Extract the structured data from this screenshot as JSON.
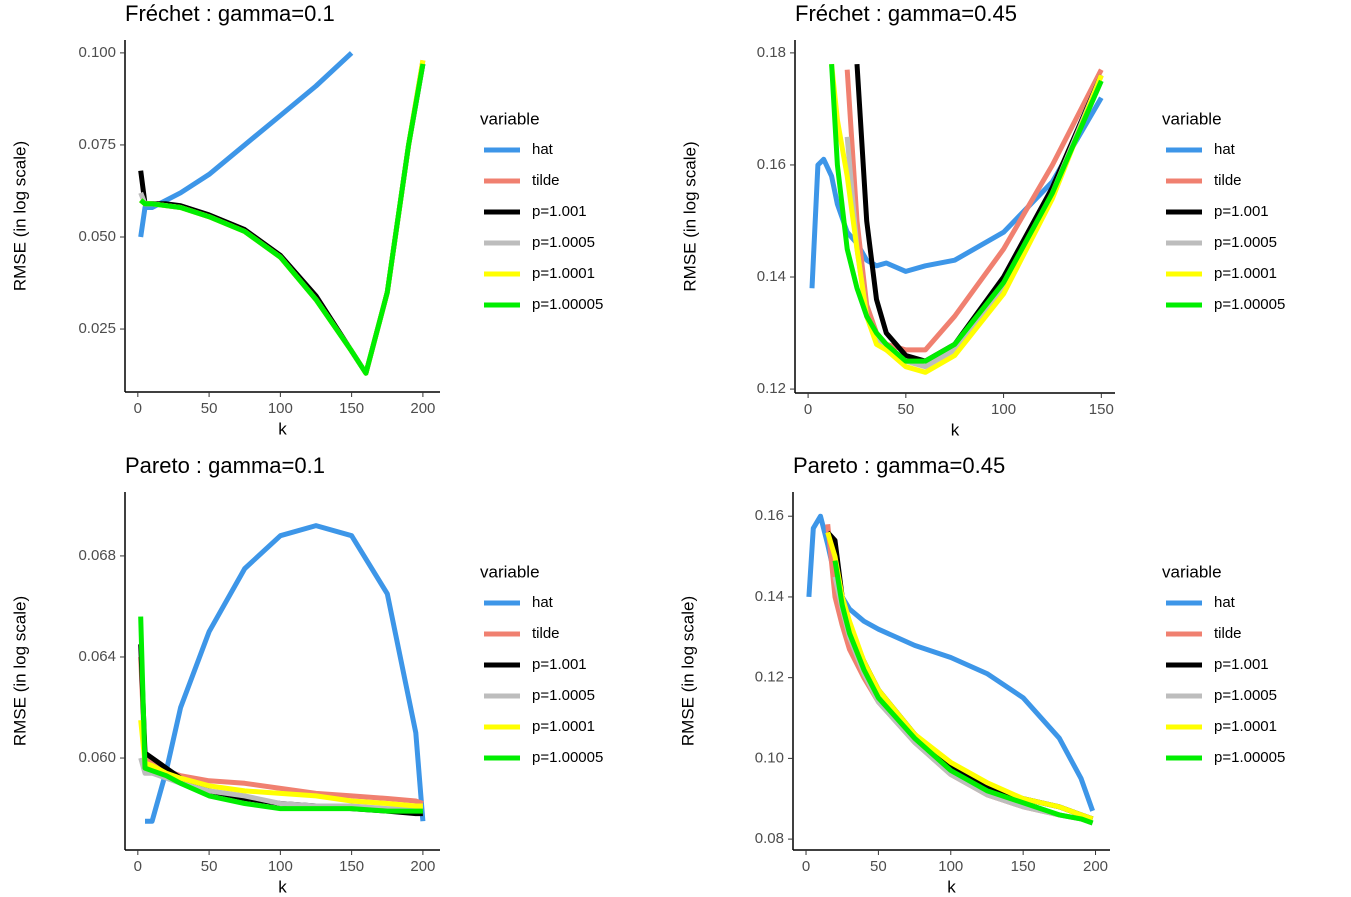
{
  "chart_data": [
    {
      "type": "line",
      "title": "Fréchet : gamma=0.1",
      "xlabel": "k",
      "ylabel": "RMSE (in log scale)",
      "legend_title": "variable",
      "x": [
        2,
        5,
        10,
        20,
        30,
        50,
        75,
        100,
        125,
        150,
        160,
        175,
        190,
        200
      ],
      "series": [
        {
          "name": "hat",
          "color": "#3d96e8",
          "values": [
            0.05,
            0.058,
            0.058,
            0.06,
            0.062,
            0.067,
            0.075,
            0.083,
            0.091,
            0.1,
            null,
            null,
            null,
            null
          ]
        },
        {
          "name": "tilde",
          "color": "#f08070",
          "values": [
            0.06,
            0.059,
            0.059,
            0.0585,
            0.058,
            0.0555,
            0.0515,
            0.0445,
            0.033,
            0.019,
            0.013,
            0.035,
            0.075,
            0.098
          ]
        },
        {
          "name": "p=1.001",
          "color": "#000000",
          "values": [
            0.068,
            0.059,
            0.059,
            0.059,
            0.0585,
            0.056,
            0.052,
            0.045,
            0.034,
            0.019,
            0.013,
            0.035,
            0.075,
            0.097
          ]
        },
        {
          "name": "p=1.0005",
          "color": "#bdbdbd",
          "values": [
            0.062,
            0.059,
            0.059,
            0.0585,
            0.058,
            0.0555,
            0.0515,
            0.0445,
            0.033,
            0.019,
            0.013,
            0.035,
            0.075,
            0.097
          ]
        },
        {
          "name": "p=1.0001",
          "color": "#ffff00",
          "values": [
            0.06,
            0.059,
            0.059,
            0.0585,
            0.058,
            0.0555,
            0.0515,
            0.0445,
            0.033,
            0.019,
            0.013,
            0.035,
            0.075,
            0.098
          ]
        },
        {
          "name": "p=1.00005",
          "color": "#00ee00",
          "values": [
            0.06,
            0.059,
            0.059,
            0.0585,
            0.058,
            0.0555,
            0.0515,
            0.0445,
            0.033,
            0.019,
            0.013,
            0.035,
            0.075,
            0.097
          ]
        }
      ],
      "xlim": [
        -9,
        212
      ],
      "ylim": [
        0.0079,
        0.1035
      ],
      "xticks": [
        0,
        50,
        100,
        150,
        200
      ],
      "yticks": [
        0.025,
        {
          "value": 0.05,
          "label": "0.050"
        },
        0.075,
        {
          "value": 0.1,
          "label": "0.100"
        }
      ]
    },
    {
      "type": "line",
      "title": "Fréchet : gamma=0.45",
      "xlabel": "k",
      "ylabel": "RMSE (in log scale)",
      "legend_title": "variable",
      "x": [
        2,
        5,
        8,
        12,
        15,
        20,
        25,
        30,
        35,
        40,
        50,
        60,
        75,
        100,
        125,
        150
      ],
      "series": [
        {
          "name": "hat",
          "color": "#3d96e8",
          "values": [
            0.138,
            0.16,
            0.161,
            0.158,
            0.153,
            0.148,
            0.146,
            0.143,
            0.142,
            0.1425,
            0.141,
            0.142,
            0.143,
            0.148,
            0.157,
            0.172
          ]
        },
        {
          "name": "tilde",
          "color": "#f08070",
          "values": [
            null,
            null,
            null,
            null,
            null,
            0.177,
            0.15,
            0.135,
            0.13,
            0.128,
            0.127,
            0.127,
            0.133,
            0.145,
            0.16,
            0.177
          ]
        },
        {
          "name": "p=1.001",
          "color": "#000000",
          "values": [
            null,
            null,
            null,
            null,
            null,
            null,
            0.178,
            0.15,
            0.136,
            0.13,
            0.126,
            0.125,
            0.128,
            0.14,
            0.156,
            0.176
          ]
        },
        {
          "name": "p=1.0005",
          "color": "#bdbdbd",
          "values": [
            null,
            null,
            null,
            null,
            null,
            0.165,
            0.145,
            0.133,
            0.129,
            0.127,
            0.125,
            0.124,
            0.127,
            0.138,
            0.155,
            0.176
          ]
        },
        {
          "name": "p=1.0001",
          "color": "#ffff00",
          "values": [
            null,
            null,
            null,
            0.178,
            0.168,
            0.158,
            0.145,
            0.133,
            0.128,
            0.127,
            0.124,
            0.123,
            0.126,
            0.137,
            0.154,
            0.176
          ]
        },
        {
          "name": "p=1.00005",
          "color": "#00ee00",
          "values": [
            null,
            null,
            null,
            0.178,
            0.16,
            0.145,
            0.138,
            0.133,
            0.13,
            0.128,
            0.125,
            0.125,
            0.128,
            0.139,
            0.155,
            0.175
          ]
        }
      ],
      "xlim": [
        -6.7,
        157
      ],
      "ylim": [
        0.1193,
        0.1823
      ],
      "xticks": [
        0,
        50,
        100,
        150
      ],
      "yticks": [
        0.12,
        0.14,
        0.16,
        0.18
      ]
    },
    {
      "type": "line",
      "title": "Pareto : gamma=0.1",
      "xlabel": "k",
      "ylabel": "RMSE (in log scale)",
      "legend_title": "variable",
      "x": [
        2,
        5,
        10,
        20,
        30,
        50,
        75,
        100,
        125,
        150,
        175,
        195,
        200
      ],
      "series": [
        {
          "name": "hat",
          "color": "#3d96e8",
          "values": [
            null,
            0.0575,
            0.0575,
            0.0595,
            0.062,
            0.065,
            0.0675,
            0.0688,
            0.0692,
            0.0688,
            0.0665,
            0.061,
            0.0575
          ]
        },
        {
          "name": "tilde",
          "color": "#f08070",
          "values": [
            0.064,
            0.06,
            0.0598,
            0.0595,
            0.0593,
            0.0591,
            0.059,
            0.0588,
            0.0586,
            0.0585,
            0.0584,
            0.0583,
            0.0582
          ]
        },
        {
          "name": "p=1.001",
          "color": "#000000",
          "values": [
            0.0645,
            0.0602,
            0.06,
            0.0596,
            0.0592,
            0.0587,
            0.0584,
            0.0582,
            0.0581,
            0.058,
            0.0579,
            0.0578,
            0.0578
          ]
        },
        {
          "name": "p=1.0005",
          "color": "#bdbdbd",
          "values": [
            0.06,
            0.0594,
            0.0594,
            0.0592,
            0.059,
            0.0587,
            0.0585,
            0.0582,
            0.0581,
            0.0581,
            0.058,
            0.058,
            0.058
          ]
        },
        {
          "name": "p=1.0001",
          "color": "#ffff00",
          "values": [
            0.0615,
            0.0598,
            0.0597,
            0.0594,
            0.0592,
            0.0589,
            0.0587,
            0.0586,
            0.0585,
            0.0583,
            0.0582,
            0.0581,
            0.0581
          ]
        },
        {
          "name": "p=1.00005",
          "color": "#00ee00",
          "values": [
            0.0656,
            0.0596,
            0.0595,
            0.0593,
            0.059,
            0.0585,
            0.0582,
            0.058,
            0.058,
            0.058,
            0.0579,
            0.0579,
            0.0579
          ]
        }
      ],
      "xlim": [
        -9,
        212
      ],
      "ylim": [
        0.05636,
        0.07053
      ],
      "xticks": [
        0,
        50,
        100,
        150,
        200
      ],
      "yticks": [
        {
          "value": 0.06,
          "label": "0.060"
        },
        0.064,
        0.068
      ]
    },
    {
      "type": "line",
      "title": "Pareto : gamma=0.45",
      "xlabel": "k",
      "ylabel": "RMSE (in log scale)",
      "legend_title": "variable",
      "x": [
        2,
        5,
        10,
        15,
        20,
        25,
        30,
        40,
        50,
        75,
        100,
        125,
        150,
        175,
        190,
        198
      ],
      "series": [
        {
          "name": "hat",
          "color": "#3d96e8",
          "values": [
            0.14,
            0.157,
            0.16,
            0.153,
            0.145,
            0.14,
            0.137,
            0.134,
            0.132,
            0.128,
            0.125,
            0.121,
            0.115,
            0.105,
            0.095,
            0.087
          ]
        },
        {
          "name": "tilde",
          "color": "#f08070",
          "values": [
            null,
            null,
            null,
            0.158,
            0.14,
            0.133,
            0.127,
            0.12,
            0.114,
            0.104,
            0.096,
            0.091,
            0.088,
            0.086,
            0.085,
            0.084
          ]
        },
        {
          "name": "p=1.001",
          "color": "#000000",
          "values": [
            null,
            null,
            null,
            0.156,
            0.154,
            0.14,
            0.133,
            0.124,
            0.117,
            0.106,
            0.098,
            0.093,
            0.09,
            0.088,
            0.086,
            0.085
          ]
        },
        {
          "name": "p=1.0005",
          "color": "#bdbdbd",
          "values": [
            null,
            null,
            null,
            null,
            0.145,
            0.137,
            0.13,
            0.121,
            0.114,
            0.104,
            0.096,
            0.091,
            0.088,
            0.086,
            0.085,
            0.084
          ]
        },
        {
          "name": "p=1.0001",
          "color": "#ffff00",
          "values": [
            null,
            null,
            null,
            0.156,
            0.15,
            0.14,
            0.134,
            0.124,
            0.117,
            0.106,
            0.099,
            0.094,
            0.09,
            0.088,
            0.086,
            0.085
          ]
        },
        {
          "name": "p=1.00005",
          "color": "#00ee00",
          "values": [
            null,
            null,
            null,
            null,
            0.149,
            0.138,
            0.131,
            0.122,
            0.115,
            0.105,
            0.097,
            0.092,
            0.089,
            0.086,
            0.085,
            0.084
          ]
        }
      ],
      "xlim": [
        -9,
        210
      ],
      "ylim": [
        0.0773,
        0.166
      ],
      "xticks": [
        0,
        50,
        100,
        150,
        200
      ],
      "yticks": [
        0.08,
        {
          "value": 0.1,
          "label": "0.10"
        },
        0.12,
        0.14,
        0.16
      ]
    }
  ]
}
